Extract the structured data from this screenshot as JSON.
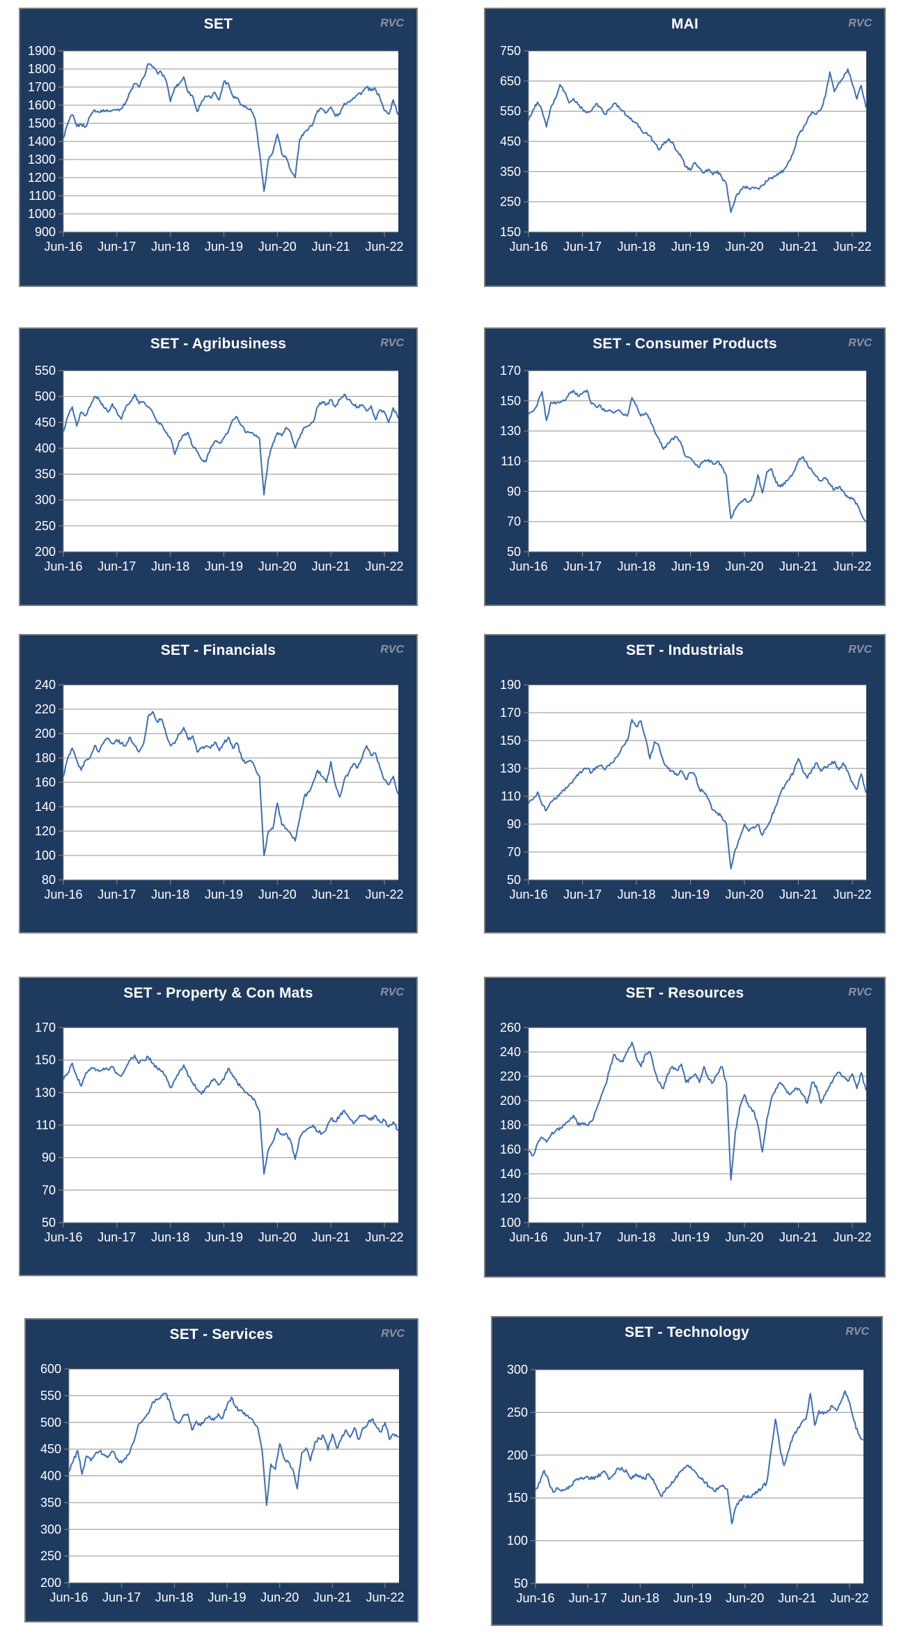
{
  "branding": {
    "watermark": "RVC",
    "watermark_color": "#8a94a4"
  },
  "chart_data": {
    "type": "line",
    "x_tick_labels": [
      "Jun-16",
      "Jun-17",
      "Jun-18",
      "Jun-19",
      "Jun-20",
      "Jun-21",
      "Jun-22"
    ],
    "x_frequency": "monthly",
    "x_start": "Jun-16",
    "x_end": "Sep-22",
    "legend": "none",
    "grid": "horizontal",
    "style": {
      "line_color": "#3e6fb3",
      "grid_color": "#8f8f8f",
      "grid_top_color": "#545454",
      "panel_bg": "#1f3a5f",
      "panel_border": "#808080",
      "text_color": "#ffffff",
      "plot_bg": "#ffffff"
    },
    "charts": [
      {
        "title": "SET",
        "ylim": [
          900,
          1900
        ],
        "ystep": 100,
        "values": [
          1420,
          1500,
          1548,
          1483,
          1495,
          1480,
          1540,
          1575,
          1560,
          1575,
          1566,
          1570,
          1575,
          1580,
          1615,
          1672,
          1720,
          1700,
          1755,
          1828,
          1810,
          1780,
          1780,
          1740,
          1620,
          1700,
          1720,
          1756,
          1670,
          1650,
          1565,
          1620,
          1650,
          1640,
          1670,
          1630,
          1730,
          1720,
          1650,
          1640,
          1600,
          1590,
          1580,
          1525,
          1340,
          1125,
          1300,
          1340,
          1440,
          1330,
          1310,
          1240,
          1200,
          1410,
          1450,
          1470,
          1500,
          1570,
          1580,
          1560,
          1590,
          1540,
          1550,
          1610,
          1620,
          1640,
          1660,
          1670,
          1700,
          1680,
          1690,
          1640,
          1570,
          1550,
          1630,
          1550
        ]
      },
      {
        "title": "MAI",
        "ylim": [
          150,
          750
        ],
        "ystep": 100,
        "values": [
          520,
          555,
          580,
          552,
          498,
          565,
          592,
          638,
          615,
          578,
          592,
          572,
          558,
          545,
          552,
          575,
          562,
          540,
          556,
          576,
          568,
          552,
          532,
          520,
          510,
          488,
          478,
          468,
          445,
          422,
          440,
          455,
          448,
          418,
          398,
          365,
          355,
          380,
          362,
          345,
          358,
          340,
          352,
          330,
          310,
          215,
          262,
          285,
          300,
          295,
          298,
          293,
          305,
          318,
          330,
          335,
          345,
          360,
          385,
          420,
          470,
          490,
          520,
          548,
          540,
          555,
          600,
          680,
          615,
          645,
          660,
          690,
          640,
          590,
          635,
          565
        ]
      },
      {
        "title": "SET - Agribusiness",
        "ylim": [
          200,
          550
        ],
        "ystep": 50,
        "values": [
          432,
          462,
          480,
          443,
          470,
          463,
          480,
          500,
          494,
          480,
          470,
          486,
          470,
          456,
          480,
          490,
          504,
          486,
          490,
          480,
          470,
          450,
          446,
          430,
          420,
          388,
          414,
          425,
          430,
          404,
          394,
          378,
          374,
          400,
          414,
          410,
          420,
          432,
          455,
          460,
          444,
          430,
          430,
          424,
          418,
          310,
          380,
          410,
          430,
          424,
          440,
          430,
          400,
          420,
          440,
          444,
          450,
          480,
          490,
          484,
          494,
          480,
          494,
          504,
          494,
          484,
          480,
          484,
          472,
          482,
          455,
          474,
          470,
          450,
          478,
          460
        ]
      },
      {
        "title": "SET - Consumer Products",
        "ylim": [
          50,
          170
        ],
        "ystep": 20,
        "values": [
          141,
          143,
          148,
          156,
          137,
          149,
          148,
          149,
          150,
          155,
          157,
          153,
          155,
          157,
          148,
          146,
          147,
          143,
          144,
          142,
          144,
          141,
          140,
          152,
          147,
          140,
          142,
          138,
          130,
          125,
          118,
          122,
          125,
          126,
          121,
          113,
          112,
          108,
          106,
          110,
          111,
          108,
          110,
          106,
          100,
          72,
          78,
          82,
          85,
          83,
          87,
          101,
          89,
          103,
          105,
          96,
          93,
          95,
          99,
          103,
          110,
          113,
          108,
          104,
          100,
          97,
          99,
          95,
          91,
          93,
          90,
          86,
          85,
          82,
          75,
          70
        ]
      },
      {
        "title": "SET - Financials",
        "ylim": [
          80,
          240
        ],
        "ystep": 20,
        "values": [
          165,
          180,
          188,
          178,
          170,
          178,
          180,
          190,
          185,
          192,
          196,
          192,
          195,
          192,
          190,
          197,
          190,
          185,
          192,
          214,
          218,
          210,
          212,
          200,
          190,
          192,
          200,
          205,
          195,
          198,
          185,
          188,
          190,
          188,
          193,
          186,
          192,
          197,
          188,
          192,
          180,
          176,
          178,
          172,
          165,
          100,
          120,
          122,
          143,
          125,
          122,
          118,
          112,
          130,
          148,
          152,
          160,
          170,
          165,
          160,
          177,
          158,
          148,
          162,
          168,
          175,
          172,
          180,
          190,
          182,
          184,
          172,
          162,
          158,
          165,
          151
        ]
      },
      {
        "title": "SET - Industrials",
        "ylim": [
          50,
          190
        ],
        "ystep": 20,
        "values": [
          105,
          108,
          113,
          104,
          100,
          106,
          108,
          112,
          114,
          118,
          122,
          125,
          128,
          130,
          127,
          131,
          132,
          129,
          132,
          135,
          140,
          146,
          150,
          165,
          160,
          164,
          152,
          137,
          149,
          146,
          135,
          130,
          128,
          125,
          128,
          122,
          127,
          125,
          115,
          113,
          108,
          100,
          98,
          95,
          90,
          58,
          72,
          80,
          90,
          85,
          88,
          90,
          82,
          88,
          95,
          103,
          112,
          118,
          122,
          128,
          137,
          128,
          123,
          129,
          134,
          128,
          131,
          133,
          135,
          129,
          134,
          128,
          120,
          115,
          126,
          113
        ]
      },
      {
        "title": "SET - Property & Con Mats",
        "ylim": [
          50,
          170
        ],
        "ystep": 20,
        "values": [
          138,
          142,
          148,
          140,
          134,
          142,
          144,
          145,
          143,
          145,
          144,
          146,
          142,
          140,
          145,
          150,
          153,
          148,
          150,
          152,
          148,
          145,
          143,
          140,
          133,
          138,
          143,
          147,
          140,
          136,
          132,
          129,
          133,
          136,
          138,
          135,
          138,
          145,
          140,
          136,
          133,
          130,
          128,
          125,
          118,
          80,
          95,
          100,
          108,
          104,
          105,
          100,
          89,
          102,
          106,
          108,
          110,
          106,
          105,
          108,
          114,
          112,
          116,
          119,
          115,
          111,
          114,
          116,
          115,
          113,
          116,
          112,
          113,
          109,
          112,
          107
        ]
      },
      {
        "title": "SET - Resources",
        "ylim": [
          100,
          260
        ],
        "ystep": 20,
        "values": [
          158,
          155,
          165,
          170,
          166,
          172,
          175,
          178,
          180,
          183,
          188,
          180,
          182,
          180,
          183,
          192,
          202,
          212,
          225,
          238,
          234,
          232,
          240,
          248,
          235,
          228,
          238,
          240,
          225,
          215,
          210,
          222,
          228,
          225,
          230,
          215,
          218,
          222,
          215,
          228,
          218,
          215,
          222,
          228,
          215,
          135,
          175,
          195,
          205,
          195,
          192,
          180,
          158,
          185,
          202,
          210,
          215,
          210,
          205,
          208,
          210,
          205,
          198,
          215,
          212,
          198,
          205,
          212,
          220,
          223,
          220,
          216,
          222,
          210,
          223,
          209
        ]
      },
      {
        "title": "SET - Services",
        "ylim": [
          200,
          600
        ],
        "ystep": 50,
        "values": [
          408,
          428,
          447,
          403,
          437,
          428,
          441,
          446,
          440,
          437,
          446,
          432,
          424,
          432,
          448,
          470,
          498,
          506,
          516,
          538,
          543,
          549,
          554,
          538,
          505,
          498,
          512,
          516,
          486,
          502,
          494,
          506,
          512,
          504,
          516,
          508,
          532,
          547,
          528,
          522,
          518,
          508,
          502,
          490,
          448,
          345,
          422,
          412,
          460,
          432,
          426,
          412,
          376,
          442,
          452,
          428,
          462,
          470,
          474,
          448,
          478,
          452,
          468,
          486,
          472,
          490,
          468,
          490,
          496,
          506,
          492,
          482,
          500,
          468,
          478,
          473
        ]
      },
      {
        "title": "SET - Technology",
        "ylim": [
          50,
          300
        ],
        "ystep": 50,
        "values": [
          160,
          168,
          182,
          170,
          157,
          162,
          158,
          160,
          163,
          170,
          173,
          172,
          175,
          172,
          175,
          178,
          180,
          172,
          178,
          185,
          183,
          180,
          172,
          178,
          176,
          172,
          178,
          172,
          160,
          152,
          162,
          165,
          172,
          180,
          185,
          188,
          183,
          178,
          172,
          168,
          162,
          158,
          162,
          165,
          160,
          120,
          140,
          148,
          152,
          150,
          155,
          158,
          162,
          168,
          205,
          242,
          210,
          188,
          205,
          222,
          230,
          238,
          242,
          272,
          235,
          252,
          248,
          252,
          258,
          252,
          262,
          275,
          262,
          240,
          225,
          218
        ]
      }
    ]
  }
}
